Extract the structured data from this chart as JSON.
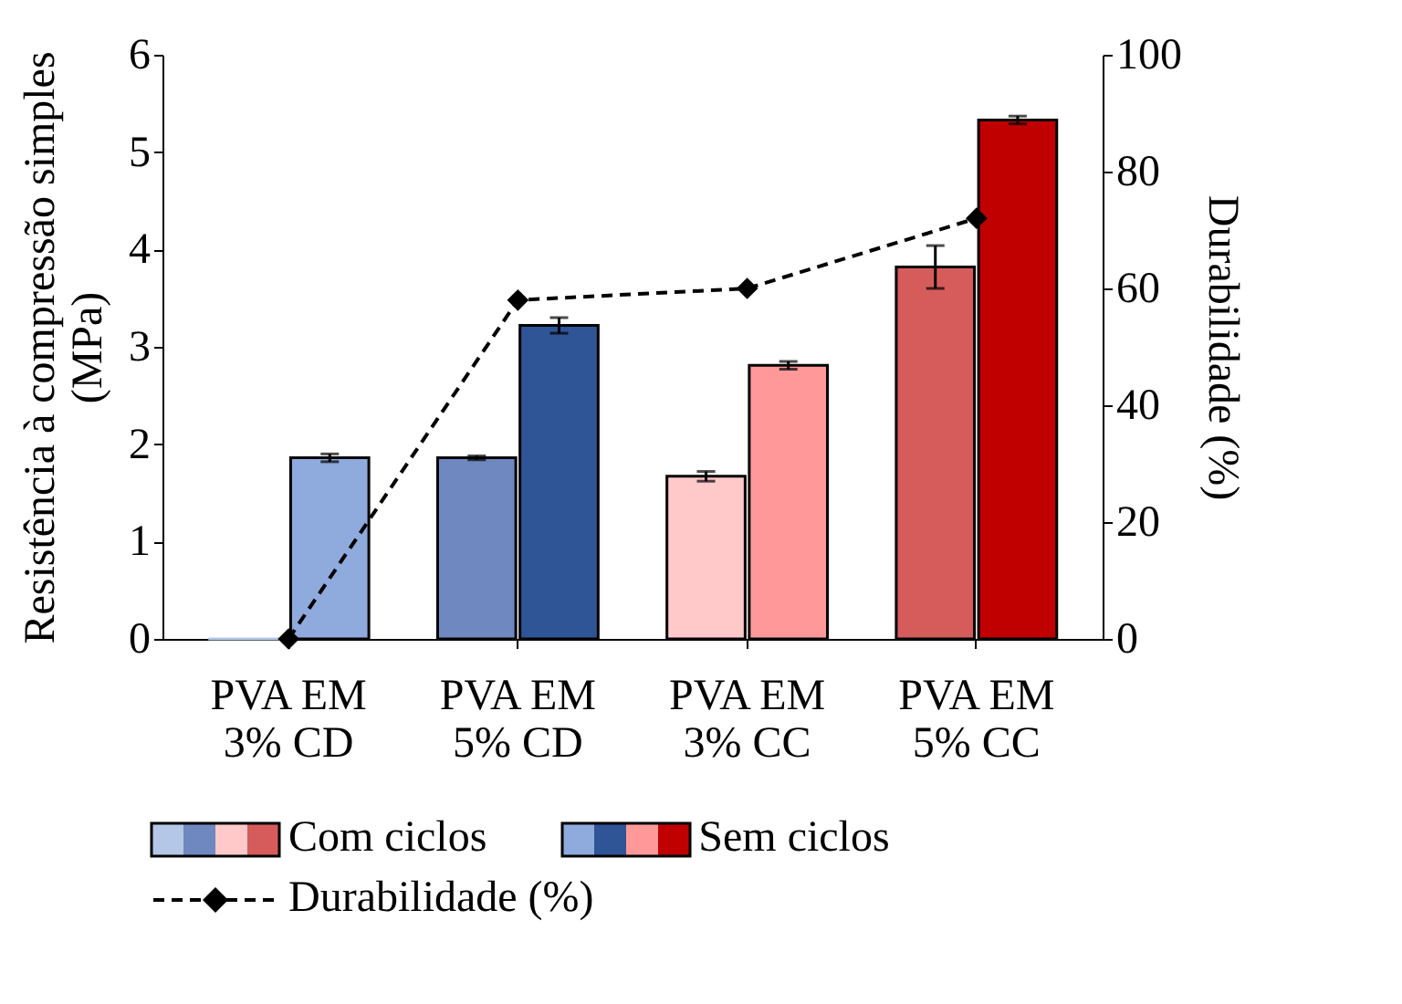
{
  "chart_data": {
    "type": "bar",
    "categories": [
      "PVA EM 3% CD",
      "PVA EM 5% CD",
      "PVA EM 3% CC",
      "PVA EM 5% CC"
    ],
    "ylabel": "Resistência à compressão simples (MPa)",
    "y2label": "Durabilidade (%)",
    "ylim": [
      0,
      6
    ],
    "yticks": [
      0,
      1,
      2,
      3,
      4,
      5,
      6
    ],
    "y2lim": [
      0,
      100
    ],
    "y2ticks": [
      0,
      20,
      40,
      60,
      80,
      100
    ],
    "legend": "bottom",
    "grid": false,
    "series": [
      {
        "name": "Com ciclos",
        "colors": [
          "#b4c7e7",
          "#6f88c0",
          "#ffc9c9",
          "#d65c5c"
        ],
        "values": [
          0,
          1.86,
          1.67,
          3.82
        ],
        "errors": [
          null,
          0.02,
          0.05,
          0.22
        ]
      },
      {
        "name": "Sem ciclos",
        "colors": [
          "#8faadc",
          "#2f5597",
          "#ff9999",
          "#c00000"
        ],
        "values": [
          1.86,
          3.22,
          2.81,
          5.33
        ],
        "errors": [
          0.04,
          0.08,
          0.04,
          0.04
        ]
      },
      {
        "name": "Durabilidade (%)",
        "type": "line",
        "axis": "y2",
        "color": "#000000",
        "values": [
          0,
          58,
          60,
          72
        ],
        "marker": "diamond",
        "line_style": "dashed"
      }
    ]
  }
}
